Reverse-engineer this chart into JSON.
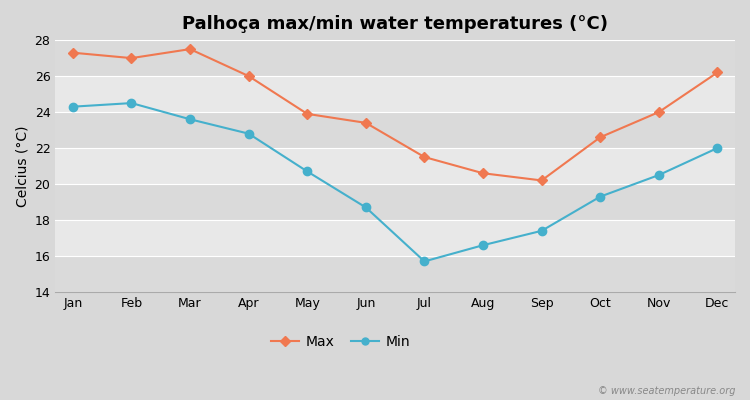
{
  "title": "Palhoça max/min water temperatures (°C)",
  "ylabel": "Celcius (°C)",
  "months": [
    "Jan",
    "Feb",
    "Mar",
    "Apr",
    "May",
    "Jun",
    "Jul",
    "Aug",
    "Sep",
    "Oct",
    "Nov",
    "Dec"
  ],
  "max_temps": [
    27.3,
    27.0,
    27.5,
    26.0,
    23.9,
    23.4,
    21.5,
    20.6,
    20.2,
    22.6,
    24.0,
    26.2
  ],
  "min_temps": [
    24.3,
    24.5,
    23.6,
    22.8,
    20.7,
    18.7,
    15.7,
    16.6,
    17.4,
    19.3,
    20.5,
    22.0
  ],
  "max_color": "#f07850",
  "min_color": "#45b0cc",
  "outer_bg": "#d8d8d8",
  "band_light": "#e8e8e8",
  "band_dark": "#dadada",
  "ylim": [
    14,
    28
  ],
  "yticks": [
    14,
    16,
    18,
    20,
    22,
    24,
    26,
    28
  ],
  "watermark": "© www.seatemperature.org",
  "legend_labels": [
    "Max",
    "Min"
  ],
  "title_fontsize": 13,
  "axis_fontsize": 9,
  "ylabel_fontsize": 10
}
